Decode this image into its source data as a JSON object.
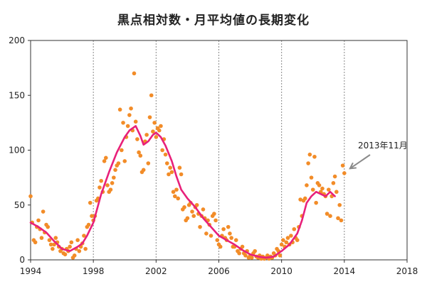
{
  "chart_data": {
    "type": "scatter",
    "title": "黒点相対数・月平均値の長期変化",
    "xlabel": "",
    "ylabel": "",
    "xlim": [
      1994,
      2018
    ],
    "ylim": [
      0,
      200
    ],
    "xticks": [
      1994,
      1998,
      2002,
      2006,
      2010,
      2014,
      2018
    ],
    "yticks": [
      0,
      50,
      100,
      150,
      200
    ],
    "grid": {
      "vertical": true,
      "horizontal": false,
      "style": "dotted"
    },
    "legend": "none",
    "annotation": {
      "text": "2013年11月",
      "points_to": [
        2014.0,
        82
      ]
    },
    "series": [
      {
        "kind": "scatter",
        "color": "#f28c28",
        "points": [
          [
            1994.0,
            58
          ],
          [
            1994.1,
            34
          ],
          [
            1994.2,
            18
          ],
          [
            1994.3,
            16
          ],
          [
            1994.4,
            30
          ],
          [
            1994.5,
            36
          ],
          [
            1994.6,
            28
          ],
          [
            1994.7,
            20
          ],
          [
            1994.8,
            44
          ],
          [
            1994.9,
            25
          ],
          [
            1995.0,
            32
          ],
          [
            1995.1,
            30
          ],
          [
            1995.2,
            18
          ],
          [
            1995.3,
            14
          ],
          [
            1995.4,
            10
          ],
          [
            1995.5,
            14
          ],
          [
            1995.6,
            20
          ],
          [
            1995.7,
            16
          ],
          [
            1995.8,
            12
          ],
          [
            1995.9,
            8
          ],
          [
            1996.0,
            10
          ],
          [
            1996.1,
            6
          ],
          [
            1996.2,
            5
          ],
          [
            1996.3,
            10
          ],
          [
            1996.4,
            8
          ],
          [
            1996.5,
            12
          ],
          [
            1996.6,
            16
          ],
          [
            1996.7,
            2
          ],
          [
            1996.8,
            4
          ],
          [
            1996.9,
            10
          ],
          [
            1997.0,
            18
          ],
          [
            1997.1,
            8
          ],
          [
            1997.2,
            12
          ],
          [
            1997.3,
            15
          ],
          [
            1997.4,
            22
          ],
          [
            1997.5,
            10
          ],
          [
            1997.6,
            30
          ],
          [
            1997.7,
            32
          ],
          [
            1997.8,
            52
          ],
          [
            1997.9,
            40
          ],
          [
            1998.0,
            36
          ],
          [
            1998.1,
            40
          ],
          [
            1998.2,
            54
          ],
          [
            1998.3,
            56
          ],
          [
            1998.4,
            66
          ],
          [
            1998.5,
            72
          ],
          [
            1998.6,
            62
          ],
          [
            1998.7,
            90
          ],
          [
            1998.8,
            93
          ],
          [
            1998.9,
            68
          ],
          [
            1999.0,
            62
          ],
          [
            1999.1,
            64
          ],
          [
            1999.2,
            70
          ],
          [
            1999.3,
            75
          ],
          [
            1999.4,
            82
          ],
          [
            1999.5,
            86
          ],
          [
            1999.6,
            88
          ],
          [
            1999.7,
            137
          ],
          [
            1999.8,
            100
          ],
          [
            1999.9,
            125
          ],
          [
            2000.0,
            90
          ],
          [
            2000.1,
            112
          ],
          [
            2000.2,
            122
          ],
          [
            2000.3,
            132
          ],
          [
            2000.4,
            138
          ],
          [
            2000.5,
            118
          ],
          [
            2000.6,
            170
          ],
          [
            2000.7,
            126
          ],
          [
            2000.8,
            110
          ],
          [
            2000.9,
            98
          ],
          [
            2001.0,
            95
          ],
          [
            2001.1,
            80
          ],
          [
            2001.2,
            82
          ],
          [
            2001.3,
            108
          ],
          [
            2001.4,
            114
          ],
          [
            2001.5,
            88
          ],
          [
            2001.6,
            130
          ],
          [
            2001.7,
            150
          ],
          [
            2001.8,
            117
          ],
          [
            2001.9,
            125
          ],
          [
            2002.0,
            112
          ],
          [
            2002.1,
            120
          ],
          [
            2002.2,
            118
          ],
          [
            2002.3,
            122
          ],
          [
            2002.4,
            100
          ],
          [
            2002.5,
            110
          ],
          [
            2002.6,
            96
          ],
          [
            2002.7,
            88
          ],
          [
            2002.8,
            78
          ],
          [
            2002.9,
            84
          ],
          [
            2003.0,
            80
          ],
          [
            2003.1,
            62
          ],
          [
            2003.2,
            58
          ],
          [
            2003.3,
            64
          ],
          [
            2003.4,
            56
          ],
          [
            2003.5,
            84
          ],
          [
            2003.6,
            78
          ],
          [
            2003.7,
            46
          ],
          [
            2003.8,
            48
          ],
          [
            2003.9,
            36
          ],
          [
            2004.0,
            38
          ],
          [
            2004.1,
            50
          ],
          [
            2004.2,
            52
          ],
          [
            2004.3,
            44
          ],
          [
            2004.4,
            40
          ],
          [
            2004.5,
            48
          ],
          [
            2004.6,
            50
          ],
          [
            2004.7,
            42
          ],
          [
            2004.8,
            30
          ],
          [
            2004.9,
            40
          ],
          [
            2005.0,
            46
          ],
          [
            2005.1,
            38
          ],
          [
            2005.2,
            24
          ],
          [
            2005.3,
            36
          ],
          [
            2005.4,
            32
          ],
          [
            2005.5,
            22
          ],
          [
            2005.6,
            40
          ],
          [
            2005.7,
            42
          ],
          [
            2005.8,
            36
          ],
          [
            2005.9,
            18
          ],
          [
            2006.0,
            14
          ],
          [
            2006.1,
            12
          ],
          [
            2006.2,
            22
          ],
          [
            2006.3,
            28
          ],
          [
            2006.4,
            20
          ],
          [
            2006.5,
            18
          ],
          [
            2006.6,
            30
          ],
          [
            2006.7,
            24
          ],
          [
            2006.8,
            20
          ],
          [
            2006.9,
            12
          ],
          [
            2007.0,
            12
          ],
          [
            2007.1,
            18
          ],
          [
            2007.2,
            8
          ],
          [
            2007.3,
            6
          ],
          [
            2007.4,
            10
          ],
          [
            2007.5,
            12
          ],
          [
            2007.6,
            6
          ],
          [
            2007.7,
            4
          ],
          [
            2007.8,
            8
          ],
          [
            2007.9,
            2
          ],
          [
            2008.0,
            4
          ],
          [
            2008.1,
            2
          ],
          [
            2008.2,
            6
          ],
          [
            2008.3,
            8
          ],
          [
            2008.4,
            3
          ],
          [
            2008.5,
            2
          ],
          [
            2008.6,
            4
          ],
          [
            2008.7,
            1
          ],
          [
            2008.8,
            3
          ],
          [
            2008.9,
            1
          ],
          [
            2009.0,
            2
          ],
          [
            2009.1,
            4
          ],
          [
            2009.2,
            1
          ],
          [
            2009.3,
            3
          ],
          [
            2009.4,
            2
          ],
          [
            2009.5,
            6
          ],
          [
            2009.6,
            4
          ],
          [
            2009.7,
            10
          ],
          [
            2009.8,
            8
          ],
          [
            2009.9,
            4
          ],
          [
            2010.0,
            14
          ],
          [
            2010.1,
            18
          ],
          [
            2010.2,
            12
          ],
          [
            2010.3,
            16
          ],
          [
            2010.4,
            20
          ],
          [
            2010.5,
            14
          ],
          [
            2010.6,
            22
          ],
          [
            2010.7,
            16
          ],
          [
            2010.8,
            28
          ],
          [
            2010.9,
            20
          ],
          [
            2011.0,
            18
          ],
          [
            2011.1,
            30
          ],
          [
            2011.2,
            55
          ],
          [
            2011.3,
            40
          ],
          [
            2011.4,
            54
          ],
          [
            2011.5,
            56
          ],
          [
            2011.6,
            68
          ],
          [
            2011.7,
            88
          ],
          [
            2011.8,
            96
          ],
          [
            2011.9,
            75
          ],
          [
            2012.0,
            64
          ],
          [
            2012.1,
            94
          ],
          [
            2012.2,
            52
          ],
          [
            2012.3,
            70
          ],
          [
            2012.4,
            68
          ],
          [
            2012.5,
            62
          ],
          [
            2012.6,
            65
          ],
          [
            2012.7,
            60
          ],
          [
            2012.8,
            58
          ],
          [
            2012.9,
            42
          ],
          [
            2013.0,
            64
          ],
          [
            2013.1,
            40
          ],
          [
            2013.2,
            58
          ],
          [
            2013.3,
            70
          ],
          [
            2013.4,
            76
          ],
          [
            2013.5,
            62
          ],
          [
            2013.6,
            38
          ],
          [
            2013.7,
            50
          ],
          [
            2013.8,
            36
          ],
          [
            2013.9,
            86
          ],
          [
            2014.0,
            79
          ]
        ]
      },
      {
        "kind": "line",
        "color": "#e8207a",
        "points": [
          [
            1994.0,
            34
          ],
          [
            1994.5,
            30
          ],
          [
            1995.0,
            25
          ],
          [
            1995.5,
            17
          ],
          [
            1996.0,
            10
          ],
          [
            1996.5,
            8
          ],
          [
            1997.0,
            12
          ],
          [
            1997.3,
            15
          ],
          [
            1997.6,
            22
          ],
          [
            1998.0,
            34
          ],
          [
            1998.5,
            60
          ],
          [
            1999.0,
            80
          ],
          [
            1999.5,
            98
          ],
          [
            2000.0,
            112
          ],
          [
            2000.3,
            118
          ],
          [
            2000.7,
            122
          ],
          [
            2001.0,
            113
          ],
          [
            2001.2,
            105
          ],
          [
            2001.5,
            108
          ],
          [
            2001.8,
            114
          ],
          [
            2002.0,
            116
          ],
          [
            2002.3,
            112
          ],
          [
            2002.6,
            104
          ],
          [
            2003.0,
            90
          ],
          [
            2003.3,
            76
          ],
          [
            2003.6,
            64
          ],
          [
            2004.0,
            56
          ],
          [
            2004.5,
            48
          ],
          [
            2005.0,
            38
          ],
          [
            2005.5,
            30
          ],
          [
            2006.0,
            22
          ],
          [
            2006.5,
            18
          ],
          [
            2007.0,
            14
          ],
          [
            2007.5,
            9
          ],
          [
            2008.0,
            5
          ],
          [
            2008.5,
            3
          ],
          [
            2009.0,
            2
          ],
          [
            2009.5,
            3
          ],
          [
            2010.0,
            8
          ],
          [
            2010.5,
            14
          ],
          [
            2011.0,
            24
          ],
          [
            2011.3,
            36
          ],
          [
            2011.6,
            52
          ],
          [
            2011.9,
            58
          ],
          [
            2012.2,
            62
          ],
          [
            2012.5,
            60
          ],
          [
            2012.8,
            58
          ],
          [
            2013.1,
            62
          ],
          [
            2013.4,
            58
          ]
        ]
      }
    ]
  }
}
